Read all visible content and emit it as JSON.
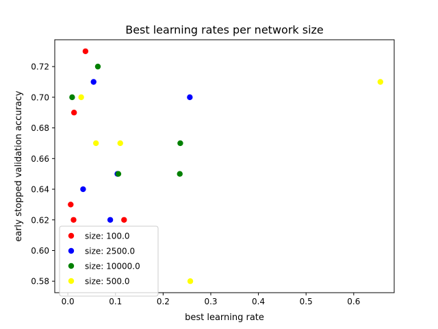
{
  "chart_data": {
    "type": "scatter",
    "title": "Best learning rates per network size",
    "xlabel": "best learning rate",
    "ylabel": "early stopped validation accuracy",
    "xlim": [
      -0.0275,
      0.685
    ],
    "ylim": [
      0.5725,
      0.7375
    ],
    "xticks": [
      0.0,
      0.1,
      0.2,
      0.3,
      0.4,
      0.5,
      0.6
    ],
    "xtick_labels": [
      "0.0",
      "0.1",
      "0.2",
      "0.3",
      "0.4",
      "0.5",
      "0.6"
    ],
    "yticks": [
      0.58,
      0.6,
      0.62,
      0.64,
      0.66,
      0.68,
      0.7,
      0.72
    ],
    "ytick_labels": [
      "0.58",
      "0.60",
      "0.62",
      "0.64",
      "0.66",
      "0.68",
      "0.70",
      "0.72"
    ],
    "grid": false,
    "legend_position": "lower-left",
    "series": [
      {
        "name": "size: 100.0",
        "color": "#ff0000",
        "points": [
          [
            0.037,
            0.73
          ],
          [
            0.013,
            0.69
          ],
          [
            0.006,
            0.63
          ],
          [
            0.012,
            0.62
          ],
          [
            0.118,
            0.62
          ]
        ]
      },
      {
        "name": "size: 2500.0",
        "color": "#0000ff",
        "points": [
          [
            0.054,
            0.71
          ],
          [
            0.256,
            0.7
          ],
          [
            0.032,
            0.64
          ],
          [
            0.104,
            0.65
          ],
          [
            0.089,
            0.62
          ]
        ]
      },
      {
        "name": "size: 10000.0",
        "color": "#008000",
        "points": [
          [
            0.063,
            0.72
          ],
          [
            0.009,
            0.7
          ],
          [
            0.236,
            0.67
          ],
          [
            0.235,
            0.65
          ],
          [
            0.106,
            0.65
          ]
        ]
      },
      {
        "name": "size: 500.0",
        "color": "#ffff00",
        "points": [
          [
            0.656,
            0.71
          ],
          [
            0.028,
            0.7
          ],
          [
            0.059,
            0.67
          ],
          [
            0.11,
            0.67
          ],
          [
            0.257,
            0.58
          ]
        ]
      }
    ]
  }
}
